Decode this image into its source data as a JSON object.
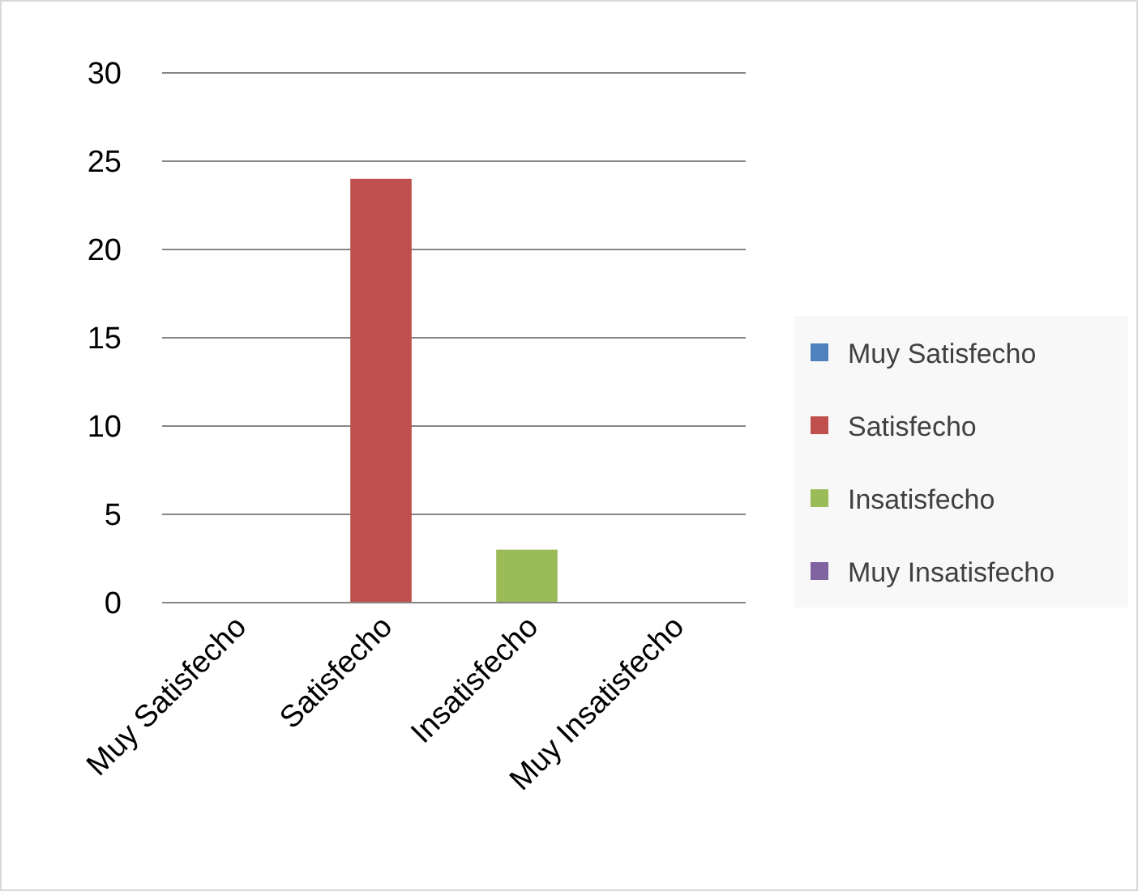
{
  "chart_data": {
    "type": "bar",
    "stacked": true,
    "categories": [
      "Muy Satisfecho",
      "Satisfecho",
      "Insatisfecho",
      "Muy Insatisfecho"
    ],
    "series": [
      {
        "name": "Muy Satisfecho",
        "color": "#4f81bd",
        "values": [
          0,
          null,
          null,
          null
        ]
      },
      {
        "name": "Satisfecho",
        "color": "#c0504d",
        "values": [
          null,
          24,
          null,
          null
        ]
      },
      {
        "name": "Insatisfecho",
        "color": "#9bbb59",
        "values": [
          null,
          null,
          3,
          null
        ]
      },
      {
        "name": "Muy Insatisfecho",
        "color": "#8064a2",
        "values": [
          null,
          null,
          null,
          0
        ]
      }
    ],
    "ylim": [
      0,
      30
    ],
    "yticks": [
      0,
      5,
      10,
      15,
      20,
      25,
      30
    ],
    "grid": "y",
    "legend": "right"
  }
}
